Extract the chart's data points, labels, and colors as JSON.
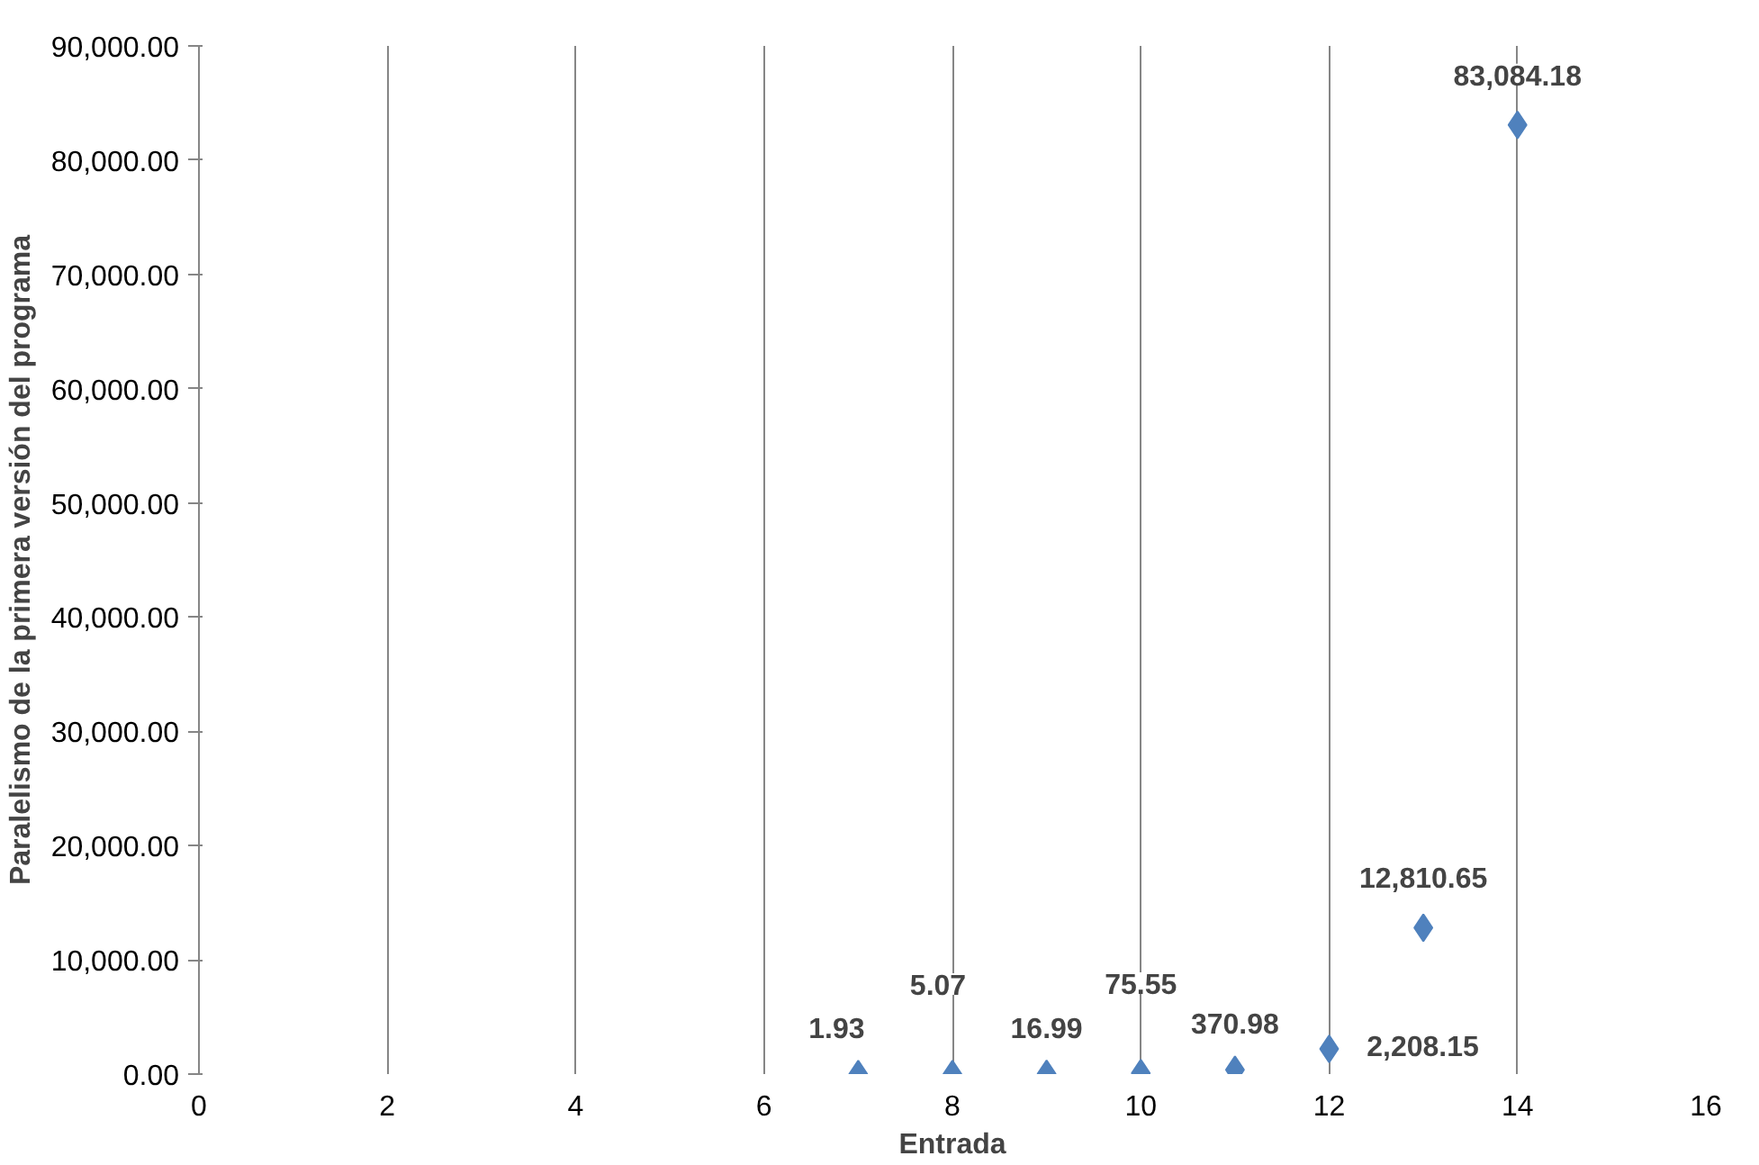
{
  "chart_data": {
    "type": "scatter",
    "xlabel": "Entrada",
    "ylabel": "Paralelismo de la primera versión del programa",
    "x": [
      7,
      8,
      9,
      10,
      11,
      12,
      13,
      14
    ],
    "values": [
      1.93,
      5.07,
      16.99,
      75.55,
      370.98,
      2208.15,
      12810.65,
      83084.18
    ],
    "value_labels": [
      "1.93",
      "5.07",
      "16.99",
      "75.55",
      "370.98",
      "2,208.15",
      "12,810.65",
      "83,084.18"
    ],
    "color": "#4f81bd",
    "marker": "diamond",
    "grid": "x",
    "legend": false,
    "xlim": [
      0,
      16
    ],
    "xticks": [
      0,
      2,
      4,
      6,
      8,
      10,
      12,
      14,
      16
    ],
    "ylim": [
      0,
      90000
    ],
    "yticks": [
      {
        "value": 0,
        "label": "0.00"
      },
      {
        "value": 10000,
        "label": "10,000.00"
      },
      {
        "value": 20000,
        "label": "20,000.00"
      },
      {
        "value": 30000,
        "label": "30,000.00"
      },
      {
        "value": 40000,
        "label": "40,000.00"
      },
      {
        "value": 50000,
        "label": "50,000.00"
      },
      {
        "value": 60000,
        "label": "60,000.00"
      },
      {
        "value": 70000,
        "label": "70,000.00"
      },
      {
        "value": 80000,
        "label": "80,000.00"
      },
      {
        "value": 90000,
        "label": "90,000.00"
      }
    ]
  }
}
